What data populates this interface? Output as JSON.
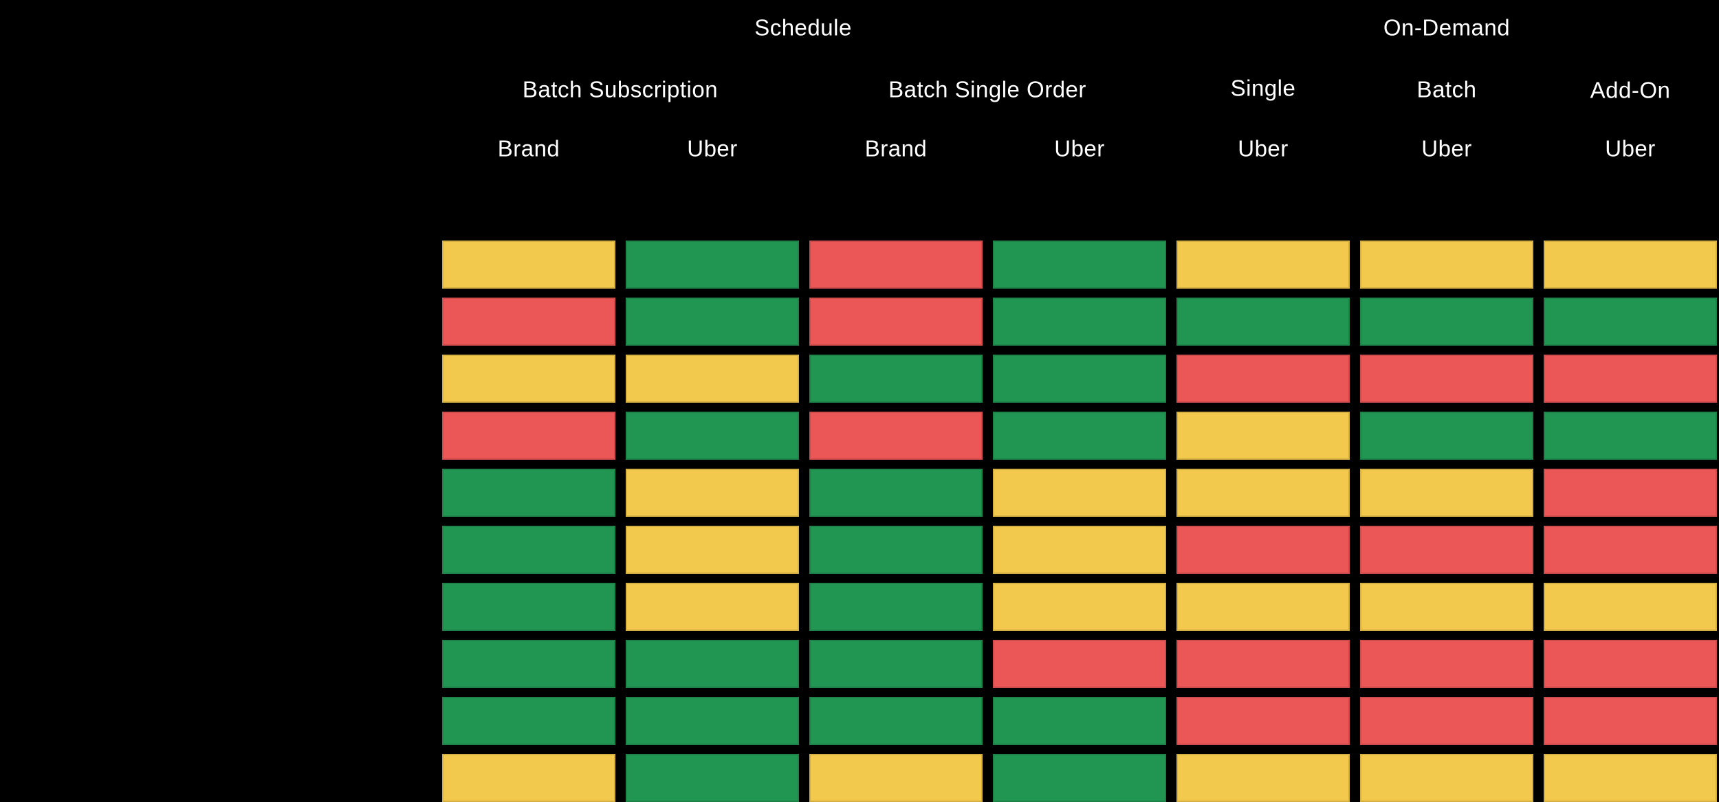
{
  "colors": {
    "background": "#000000",
    "text": "#FFFFFF",
    "green": "#219653",
    "yellow": "#F2C94C",
    "red": "#EB5757"
  },
  "header": {
    "groups": [
      {
        "label": "Schedule"
      },
      {
        "label": "On-Demand"
      }
    ],
    "subgroups": [
      {
        "label": "Batch Subscription"
      },
      {
        "label": "Batch Single Order"
      },
      {
        "label": "Single"
      },
      {
        "label": "Batch"
      },
      {
        "label": "Add-On"
      }
    ],
    "columns": [
      {
        "label": "Brand"
      },
      {
        "label": "Uber"
      },
      {
        "label": "Brand"
      },
      {
        "label": "Uber"
      },
      {
        "label": "Uber"
      },
      {
        "label": "Uber"
      },
      {
        "label": "Uber"
      }
    ]
  },
  "chart_data": {
    "type": "heatmap",
    "title": "",
    "legend_position": "none",
    "grid": "off",
    "column_groups": [
      {
        "label": "Schedule",
        "subgroups": [
          {
            "label": "Batch Subscription",
            "columns": [
              "Brand",
              "Uber"
            ]
          },
          {
            "label": "Batch Single Order",
            "columns": [
              "Brand",
              "Uber"
            ]
          }
        ]
      },
      {
        "label": "On-Demand",
        "subgroups": [
          {
            "label": "Single",
            "columns": [
              "Uber"
            ]
          },
          {
            "label": "Batch",
            "columns": [
              "Uber"
            ]
          },
          {
            "label": "Add-On",
            "columns": [
              "Uber"
            ]
          }
        ]
      }
    ],
    "columns": [
      "Schedule / Batch Subscription / Brand",
      "Schedule / Batch Subscription / Uber",
      "Schedule / Batch Single Order / Brand",
      "Schedule / Batch Single Order / Uber",
      "On-Demand / Single / Uber",
      "On-Demand / Batch / Uber",
      "On-Demand / Add-On / Uber"
    ],
    "cell_palette": {
      "green": "#219653",
      "yellow": "#F2C94C",
      "red": "#EB5757"
    },
    "rows": [
      [
        "yellow",
        "green",
        "red",
        "green",
        "yellow",
        "yellow",
        "yellow"
      ],
      [
        "red",
        "green",
        "red",
        "green",
        "green",
        "green",
        "green"
      ],
      [
        "yellow",
        "yellow",
        "green",
        "green",
        "red",
        "red",
        "red"
      ],
      [
        "red",
        "green",
        "red",
        "green",
        "yellow",
        "green",
        "green"
      ],
      [
        "green",
        "yellow",
        "green",
        "yellow",
        "yellow",
        "yellow",
        "red"
      ],
      [
        "green",
        "yellow",
        "green",
        "yellow",
        "red",
        "red",
        "red"
      ],
      [
        "green",
        "yellow",
        "green",
        "yellow",
        "yellow",
        "yellow",
        "yellow"
      ],
      [
        "green",
        "green",
        "green",
        "red",
        "red",
        "red",
        "red"
      ],
      [
        "green",
        "green",
        "green",
        "green",
        "red",
        "red",
        "red"
      ],
      [
        "yellow",
        "green",
        "yellow",
        "green",
        "yellow",
        "yellow",
        "yellow"
      ]
    ]
  }
}
